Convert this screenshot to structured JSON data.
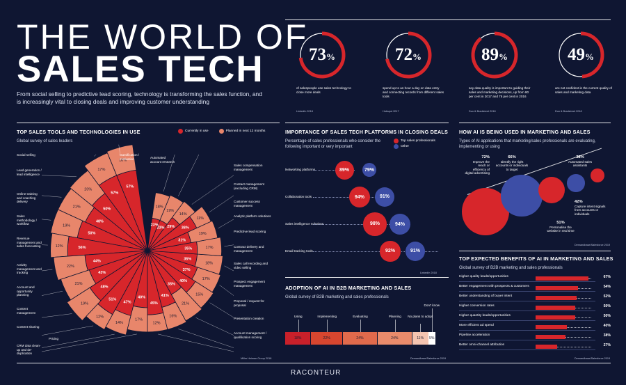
{
  "title": {
    "line1": "THE WORLD OF",
    "line2": "SALES TECH"
  },
  "intro": "From social selling to predictive lead scoring, technology is transforming the sales function, and is increasingly vital to closing deals and improving customer understanding",
  "colors": {
    "background": "#0f1632",
    "red": "#d7262b",
    "salmon": "#e8866b",
    "blue": "#3d4ea6",
    "white": "#ffffff"
  },
  "stats": [
    {
      "value": "73",
      "unit": "%",
      "desc": "of salespeople use sales technology to close more deals",
      "source": "LinkedIn 2018",
      "percent": 73
    },
    {
      "value": "72",
      "unit": "%",
      "desc": "spend up to an hour a day on data entry and connecting records from different sales tools",
      "source": "Hubspot 2017",
      "percent": 72
    },
    {
      "value": "89",
      "unit": "%",
      "desc": "say data quality is important to guiding their sales and marketing decisions, up from 80 per cent in 2017 and 75 per cent in 2016",
      "source": "Dun & Bradstreet 2018",
      "percent": 89
    },
    {
      "value": "49",
      "unit": "%",
      "desc": "are not confident in the current quality of sales and marketing data",
      "source": "Dun & Bradstreet 2018",
      "percent": 49
    }
  ],
  "tools": {
    "heading": "TOP SALES TOOLS AND TECHNOLOGIES IN USE",
    "subheading": "Global survey of sales leaders",
    "legend_current": "Currently in use",
    "legend_planned": "Planned in next 12 months",
    "source": "Miller Heiman Group 2018",
    "chart_data": {
      "type": "polar-bar",
      "title": "TOP SALES TOOLS AND TECHNOLOGIES IN USE",
      "series": [
        "Currently in use",
        "Planned in next 12 months"
      ],
      "items": [
        {
          "name": "Social selling",
          "current": 57,
          "planned": 18,
          "label": "Social selling"
        },
        {
          "name": "Lead generation / lead intelligence",
          "current": 57,
          "planned": 17,
          "label": "Lead generation / lead intelligence"
        },
        {
          "name": "Online training and coaching delivery",
          "current": 50,
          "planned": 20,
          "label": "Online training and coaching delivery"
        },
        {
          "name": "Sales methodology / workflow",
          "current": 48,
          "planned": 21,
          "label": "Sales methodology / workflow"
        },
        {
          "name": "Revenue management and sales forecasting",
          "current": 50,
          "planned": 19,
          "label": "Revenue management and sales forecasting"
        },
        {
          "name": "Activity management and tracking",
          "current": 56,
          "planned": 12,
          "label": "Activity management and tracking"
        },
        {
          "name": "Account and opportunity planning",
          "current": 44,
          "planned": 22,
          "label": "Account and opportunity planning"
        },
        {
          "name": "Content management",
          "current": 43,
          "planned": 21,
          "label": "Content management"
        },
        {
          "name": "Content sharing",
          "current": 48,
          "planned": 19,
          "label": "Content sharing"
        },
        {
          "name": "Pricing",
          "current": 51,
          "planned": 12,
          "label": "Pricing"
        },
        {
          "name": "CRM data clean-up and de-duplication",
          "current": 47,
          "planned": 14,
          "label": "CRM data clean-up and de-duplication"
        },
        {
          "name": "Account management / qualification scoring",
          "current": 40,
          "planned": 17,
          "label": "Account management / qualification scoring"
        },
        {
          "name": "Presentation creation",
          "current": 45,
          "planned": 12,
          "label": "Presentation creation"
        },
        {
          "name": "Proposal / request for proposal",
          "current": 41,
          "planned": 16,
          "label": "Proposal / request for proposal"
        },
        {
          "name": "Prospect engagement management",
          "current": 35,
          "planned": 21,
          "label": "Prospect engagement management"
        },
        {
          "name": "Sales call recording and video selling",
          "current": 40,
          "planned": 15,
          "label": "Sales call recording and video selling"
        },
        {
          "name": "Contract delivery and management",
          "current": 37,
          "planned": 17,
          "label": "Contract delivery and management"
        },
        {
          "name": "Predictive lead scoring",
          "current": 35,
          "planned": 18,
          "label": "Predictive lead scoring"
        },
        {
          "name": "Analytic platform solutions",
          "current": 35,
          "planned": 17,
          "label": "Analytic platform solutions"
        },
        {
          "name": "Customer success management",
          "current": 31,
          "planned": 19,
          "label": "Customer success management"
        },
        {
          "name": "Contact management (excluding CRM)",
          "current": 38,
          "planned": 11,
          "label": "Contact management (excluding CRM)"
        },
        {
          "name": "Sales compensation management",
          "current": 29,
          "planned": 14,
          "label": "Sales compensation management"
        },
        {
          "name": "Automated account research",
          "current": 23,
          "planned": 19,
          "label": "Automated account research"
        },
        {
          "name": "Gamification / motivation",
          "current": 23,
          "planned": 18,
          "label": "Gamification / motivation"
        }
      ]
    }
  },
  "platforms": {
    "heading": "IMPORTANCE OF SALES TECH PLATFORMS IN CLOSING DEALS",
    "subheading": "Percentage of sales professionals who consider the following important or very important",
    "legend_top": "Top sales professionals",
    "legend_other": "Other",
    "source": "LinkedIn 2018",
    "chart_data": {
      "type": "bubble",
      "categories": [
        "Networking platforms",
        "Collaboration tools",
        "Sales intelligence solutions",
        "Email tracking tools"
      ],
      "series": [
        {
          "name": "Top sales professionals",
          "values": [
            89,
            94,
            98,
            92
          ]
        },
        {
          "name": "Other",
          "values": [
            79,
            91,
            94,
            91
          ]
        }
      ]
    },
    "rows": [
      {
        "label": "Networking platforms",
        "top": "89%",
        "other": "79%"
      },
      {
        "label": "Collaboration tools",
        "top": "94%",
        "other": "91%"
      },
      {
        "label": "Sales intelligence solutions",
        "top": "98%",
        "other": "94%"
      },
      {
        "label": "Email tracking tools",
        "top": "92%",
        "other": "91%"
      }
    ]
  },
  "ai_use": {
    "heading": "HOW AI IS BEING USED IN MARKETING AND SALES",
    "subheading": "Types of AI applications that marketing/sales professionals are evaluating, implementing or using",
    "source": "Demandbase/Salesforce 2019",
    "chart_data": {
      "type": "bubble",
      "categories": [
        "Improve the reach or efficiency of digital advertising",
        "Identify the right accounts or individuals to target",
        "Personalise the website in real time",
        "Capture intent signals from accounts or individuals",
        "Automated sales assistants"
      ],
      "values": [
        72,
        66,
        51,
        42,
        38
      ]
    },
    "items": [
      {
        "pct": "72%",
        "text": "Improve the reach or efficiency of digital advertising"
      },
      {
        "pct": "66%",
        "text": "Identify the right accounts or individuals to target"
      },
      {
        "pct": "51%",
        "text": "Personalise the website in real time"
      },
      {
        "pct": "42%",
        "text": "Capture intent signals from accounts or individuals"
      },
      {
        "pct": "38%",
        "text": "Automated sales assistants"
      }
    ]
  },
  "adoption": {
    "heading": "ADOPTION OF AI IN B2B MARKETING AND SALES",
    "subheading": "Global survey of B2B marketing and sales professionals",
    "source": "Demandbase/Salesforce 2019",
    "chart_data": {
      "type": "stacked-bar",
      "categories": [
        "Using",
        "Implementing",
        "Evaluating",
        "Planning",
        "No plans to adopt",
        "Don't know"
      ],
      "values": [
        18,
        22,
        24,
        24,
        11,
        5
      ]
    },
    "segments": [
      {
        "label": "Using",
        "value": "18%"
      },
      {
        "label": "Implementing",
        "value": "22%"
      },
      {
        "label": "Evaluating",
        "value": "24%"
      },
      {
        "label": "Planning",
        "value": "24%"
      },
      {
        "label": "No plans to adopt",
        "value": "11%"
      },
      {
        "label": "Don't know",
        "value": "5%"
      }
    ]
  },
  "benefits": {
    "heading": "TOP EXPECTED BENEFITS OF AI IN MARKETING AND SALES",
    "subheading": "Global survey of B2B marketing and sales professionals",
    "source": "Demandbase/Salesforce 2019",
    "chart_data": {
      "type": "bar",
      "categories": [
        "Higher quality leads/opportunities",
        "Better engagement with prospects & customers",
        "Better understanding of buyer intent",
        "Higher conversion rates",
        "Higher quantity leads/opportunities",
        "More efficient ad spend",
        "Pipeline acceleration",
        "Better omni-channel attribution"
      ],
      "values": [
        67,
        54,
        52,
        50,
        50,
        40,
        38,
        27
      ],
      "xlim": [
        0,
        67
      ]
    },
    "rows": [
      {
        "label": "Higher quality leads/opportunities",
        "value": "67%"
      },
      {
        "label": "Better engagement with prospects & customers",
        "value": "54%"
      },
      {
        "label": "Better understanding of buyer intent",
        "value": "52%"
      },
      {
        "label": "Higher conversion rates",
        "value": "50%"
      },
      {
        "label": "Higher quantity leads/opportunities",
        "value": "50%"
      },
      {
        "label": "More efficient ad spend",
        "value": "40%"
      },
      {
        "label": "Pipeline acceleration",
        "value": "38%"
      },
      {
        "label": "Better omni-channel attribution",
        "value": "27%"
      }
    ]
  },
  "logo": "RACONTEUR"
}
